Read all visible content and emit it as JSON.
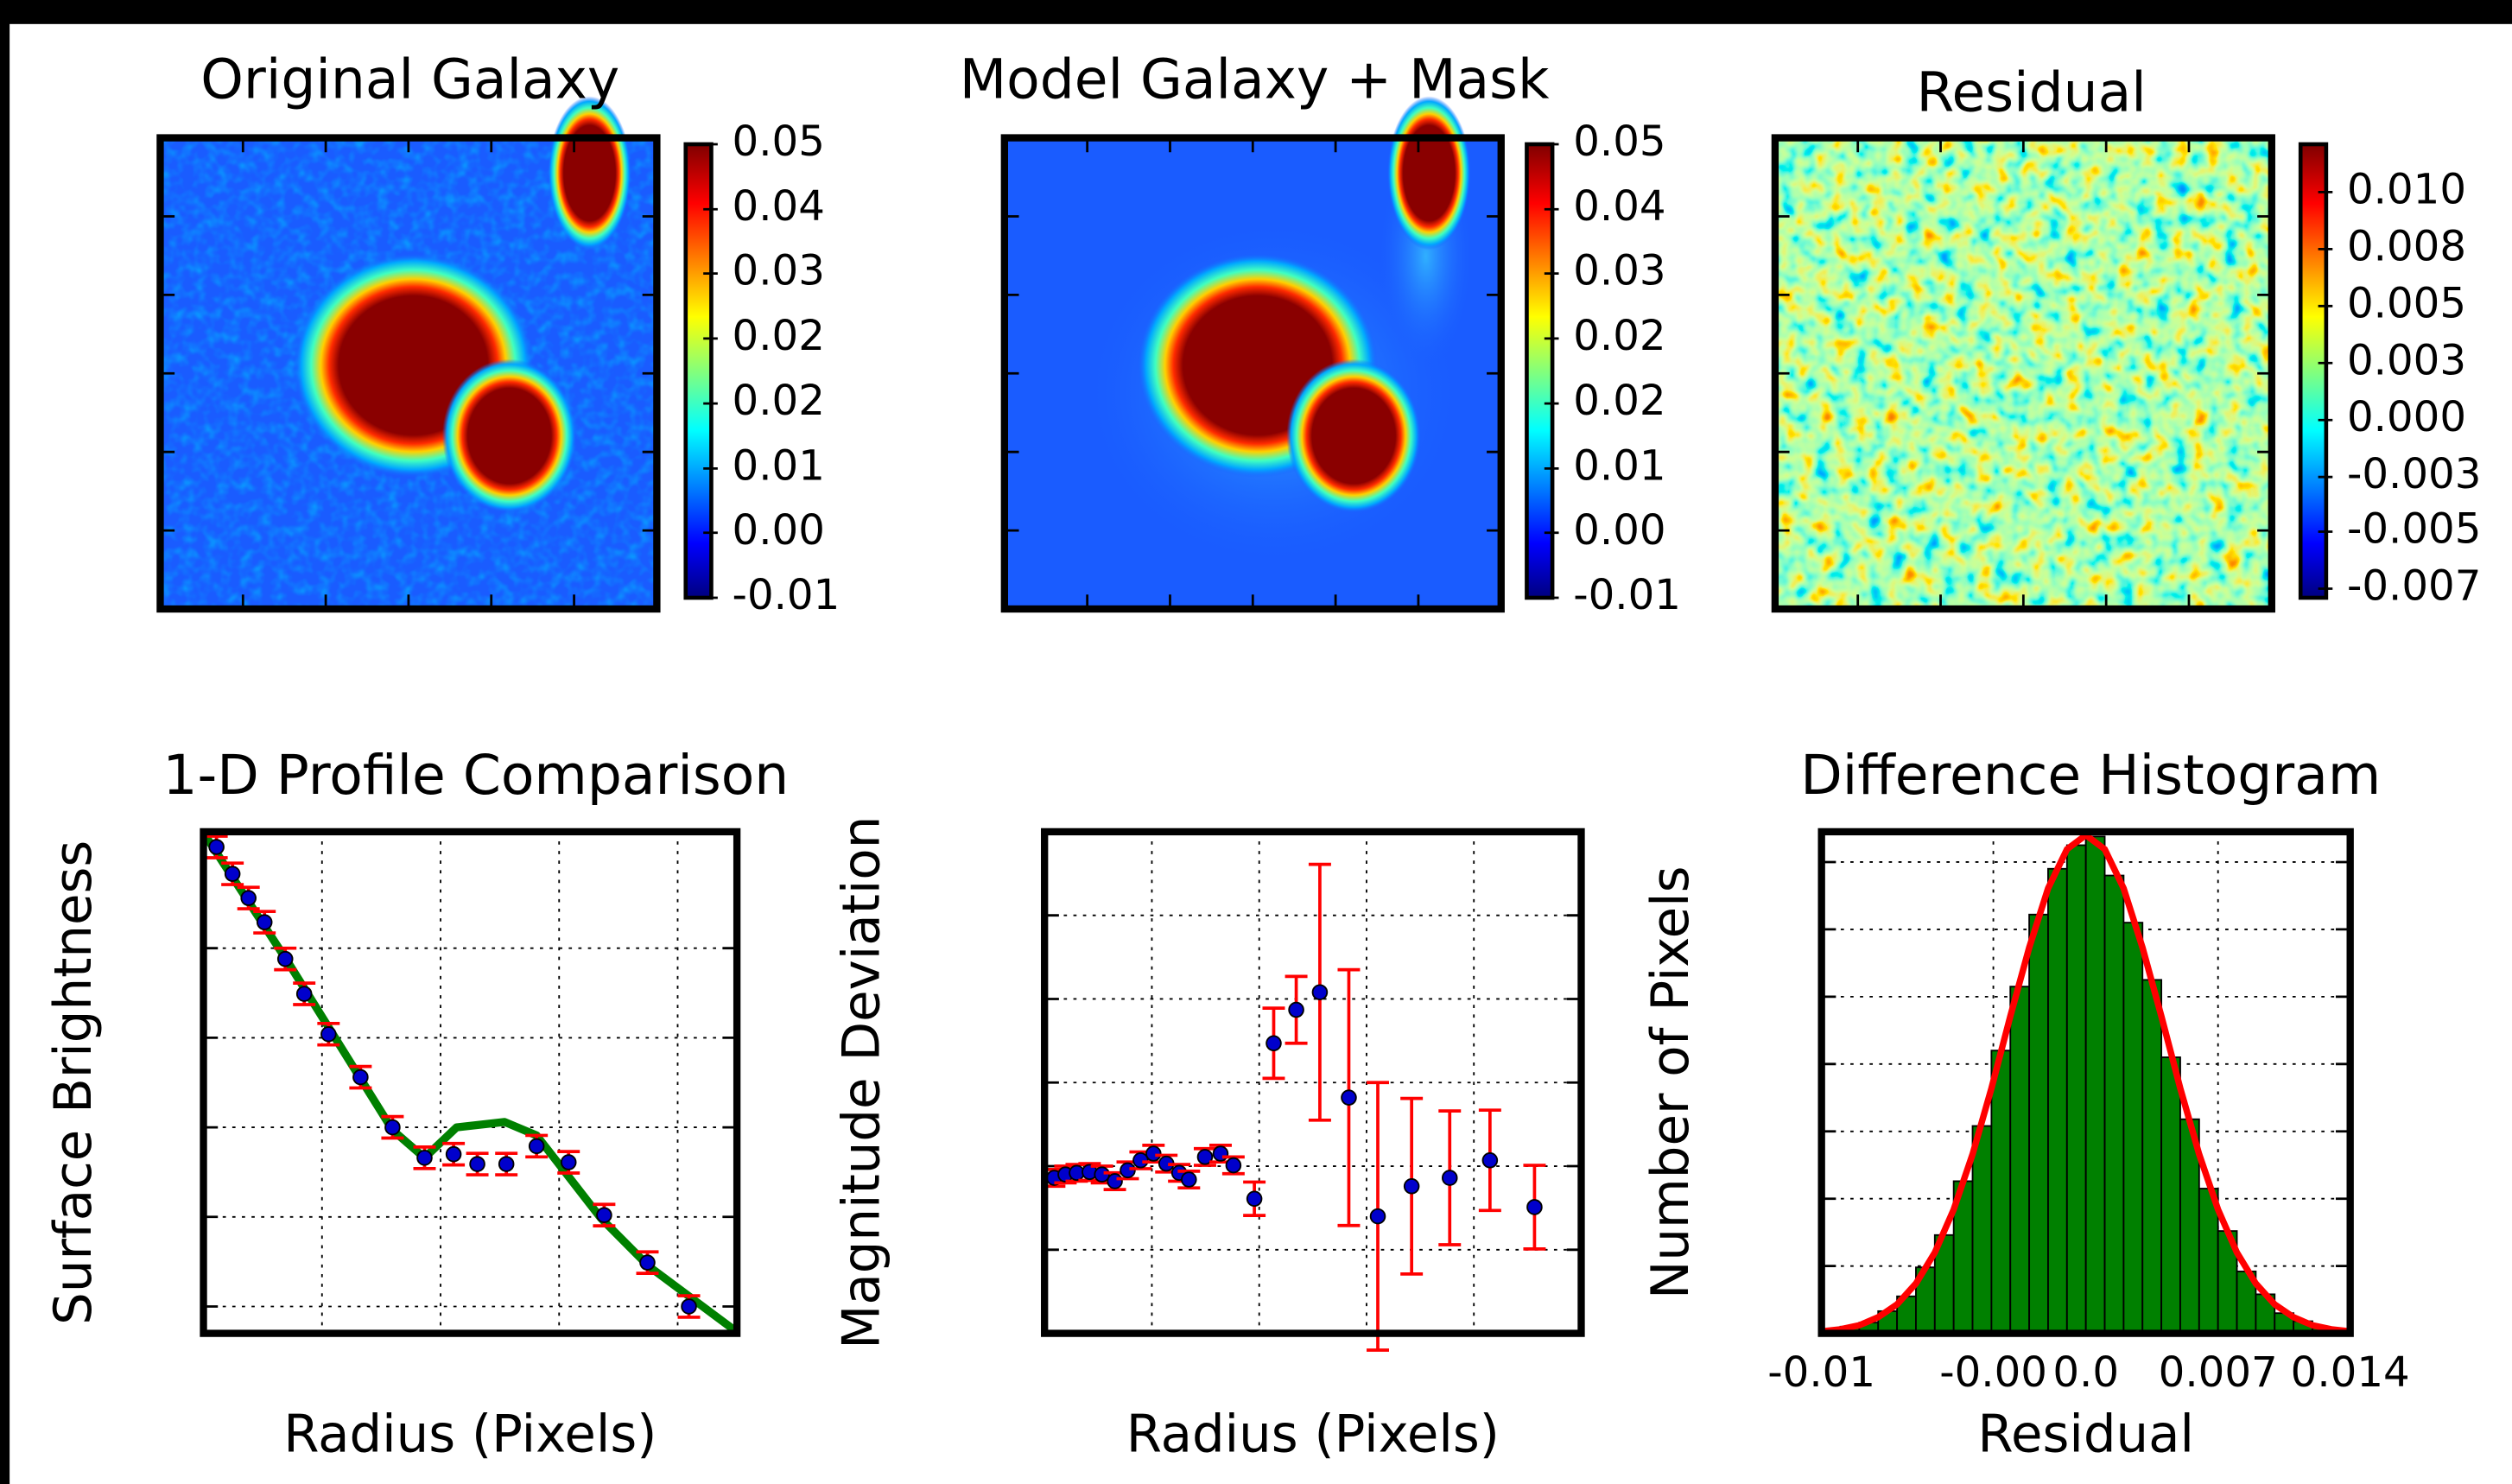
{
  "chart_data": [
    {
      "type": "heatmap",
      "title": "Original Galaxy",
      "colorbar": {
        "ylim": [
          -0.01,
          0.05
        ],
        "yticks": [
          {
            "value": -0.01,
            "label": "-0.01"
          },
          {
            "value": -0.0014,
            "label": "0.00"
          },
          {
            "value": 0.0071,
            "label": "0.01"
          },
          {
            "value": 0.0157,
            "label": "0.02"
          },
          {
            "value": 0.0243,
            "label": "0.02"
          },
          {
            "value": 0.0329,
            "label": "0.03"
          },
          {
            "value": 0.0414,
            "label": "0.04"
          },
          0.05
        ]
      }
    },
    {
      "type": "heatmap",
      "title": "Model Galaxy + Mask",
      "colorbar": {
        "ylim": [
          -0.01,
          0.05
        ],
        "yticks": [
          {
            "value": -0.01,
            "label": "-0.01"
          },
          {
            "value": -0.0014,
            "label": "0.00"
          },
          {
            "value": 0.0071,
            "label": "0.01"
          },
          {
            "value": 0.0157,
            "label": "0.02"
          },
          {
            "value": 0.0243,
            "label": "0.02"
          },
          {
            "value": 0.0329,
            "label": "0.03"
          },
          {
            "value": 0.0414,
            "label": "0.04"
          },
          0.05
        ]
      }
    },
    {
      "type": "heatmap",
      "title": "Residual",
      "colorbar": {
        "ylim": [
          -0.0078,
          0.0121
        ],
        "yticks": [
          {
            "value": -0.0074,
            "label": "-0.007"
          },
          {
            "value": -0.0049,
            "label": "-0.005"
          },
          {
            "value": -0.0025,
            "label": "-0.003"
          },
          {
            "value": 0,
            "label": "0.000"
          },
          {
            "value": 0.0025,
            "label": "0.003"
          },
          {
            "value": 0.005,
            "label": "0.005"
          },
          {
            "value": 0.0075,
            "label": "0.008"
          },
          {
            "value": 0.01,
            "label": "0.010"
          }
        ]
      }
    },
    {
      "type": "profile",
      "title": "1-D Profile Comparison",
      "xlabel": "Radius (Pixels)",
      "ylabel": "Surface Brightness",
      "xlim": [
        0,
        9
      ],
      "ylim": [
        -0.3,
        5.3
      ],
      "xticks": [
        2,
        4,
        6,
        8
      ],
      "yticks": [
        0,
        1,
        2,
        3,
        4
      ],
      "grid": true,
      "series": [
        {
          "type": "line",
          "color": "#008000",
          "x": [
            0,
            1.43,
            3.19,
            3.73,
            4.27,
            5.08,
            5.62,
            6.7,
            7.51,
            8.95
          ],
          "values": [
            5.29,
            3.84,
            1.97,
            1.66,
            2.0,
            2.06,
            1.91,
            0.99,
            0.45,
            -0.26
          ]
        },
        {
          "type": "errorbar",
          "color": "#0000cc",
          "error_color": "#ff0000",
          "x": [
            0.22,
            0.49,
            0.76,
            1.03,
            1.38,
            1.7,
            2.11,
            2.65,
            3.19,
            3.73,
            4.22,
            4.62,
            5.11,
            5.62,
            6.16,
            6.76,
            7.49,
            8.19
          ],
          "values": [
            5.13,
            4.83,
            4.56,
            4.29,
            3.88,
            3.49,
            3.04,
            2.56,
            2.0,
            1.66,
            1.7,
            1.59,
            1.59,
            1.79,
            1.61,
            1.02,
            0.49,
            0.0
          ],
          "errors": [
            0.12,
            0.12,
            0.12,
            0.12,
            0.12,
            0.12,
            0.12,
            0.12,
            0.12,
            0.12,
            0.12,
            0.12,
            0.12,
            0.12,
            0.12,
            0.12,
            0.12,
            0.12
          ]
        }
      ]
    },
    {
      "type": "deviation",
      "xlabel": "Radius (Pixels)",
      "ylabel": "Magnitude Deviation",
      "xlim": [
        0,
        10
      ],
      "ylim": [
        -1,
        5
      ],
      "xticks": [
        2,
        4,
        6,
        8
      ],
      "yticks": [
        0,
        1,
        2,
        3,
        4
      ],
      "grid": true,
      "series": [
        {
          "type": "errorbar",
          "color": "#0000cc",
          "error_color": "#ff0000",
          "x": [
            0.18,
            0.39,
            0.6,
            0.84,
            1.07,
            1.31,
            1.55,
            1.79,
            2.03,
            2.27,
            2.51,
            2.69,
            2.99,
            3.28,
            3.52,
            3.91,
            4.27,
            4.69,
            5.13,
            5.67,
            6.21,
            6.84,
            7.55,
            8.3,
            9.13
          ],
          "values": [
            0.86,
            0.9,
            0.92,
            0.93,
            0.9,
            0.82,
            0.95,
            1.07,
            1.15,
            1.03,
            0.92,
            0.84,
            1.11,
            1.15,
            1.01,
            0.61,
            2.47,
            2.87,
            3.08,
            1.82,
            0.4,
            0.76,
            0.86,
            1.07,
            0.51
          ],
          "errors": [
            0.1,
            0.1,
            0.1,
            0.1,
            0.1,
            0.1,
            0.1,
            0.1,
            0.1,
            0.1,
            0.1,
            0.1,
            0.1,
            0.1,
            0.1,
            0.2,
            0.42,
            0.4,
            1.53,
            1.53,
            1.6,
            1.05,
            0.8,
            0.6,
            0.5
          ]
        }
      ]
    },
    {
      "type": "histogram",
      "title": "Difference Histogram",
      "xlabel": "Residual",
      "ylabel": "Number of Pixels",
      "xlim": [
        -0.014,
        0.014
      ],
      "ylim": [
        0,
        745
      ],
      "xticks": [
        {
          "value": -0.014,
          "label": "-0.01"
        },
        {
          "value": -0.0049,
          "label": "-0.00"
        },
        {
          "value": 0,
          "label": "0.0"
        },
        0.007,
        0.014
      ],
      "yticks": [
        100,
        200,
        300,
        400,
        500,
        600,
        700
      ],
      "grid": true,
      "color": "#008000",
      "bins": [
        -0.014,
        -0.013,
        -0.012,
        -0.011,
        -0.01,
        -0.009,
        -0.008,
        -0.007,
        -0.006,
        -0.005,
        -0.004,
        -0.003,
        -0.002,
        -0.001,
        0,
        0.001,
        0.002,
        0.003,
        0.004,
        0.005,
        0.006,
        0.007,
        0.008,
        0.009,
        0.01,
        0.011,
        0.012,
        0.013,
        0.014
      ],
      "values": [
        4,
        10,
        16,
        33,
        55,
        98,
        146,
        226,
        308,
        420,
        515,
        622,
        690,
        725,
        738,
        680,
        610,
        525,
        410,
        318,
        215,
        152,
        92,
        58,
        30,
        18,
        8,
        5
      ],
      "fit": {
        "color": "#ff0000",
        "x": [
          -0.014,
          -0.013,
          -0.012,
          -0.011,
          -0.01,
          -0.009,
          -0.008,
          -0.007,
          -0.006,
          -0.005,
          -0.004,
          -0.003,
          -0.002,
          -0.001,
          0,
          0.001,
          0.002,
          0.003,
          0.004,
          0.005,
          0.006,
          0.007,
          0.008,
          0.009,
          0.01,
          0.011,
          0.012,
          0.013,
          0.014
        ],
        "values": [
          3,
          6,
          12,
          24,
          43,
          74,
          120,
          184,
          266,
          364,
          471,
          573,
          661,
          719,
          740,
          719,
          661,
          573,
          471,
          364,
          266,
          184,
          120,
          74,
          43,
          24,
          12,
          6,
          3
        ]
      }
    }
  ]
}
